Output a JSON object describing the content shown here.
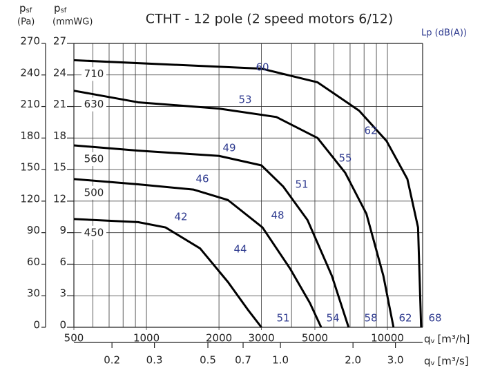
{
  "chart_data": {
    "type": "line",
    "title": "CTHT - 12 pole (2 speed motors 6/12)",
    "ylabel": {
      "symbol": "p",
      "sub": "sf",
      "unit": "(Pa)"
    },
    "y2label": {
      "symbol": "p",
      "sub": "sf",
      "unit": "(mmWG)"
    },
    "xlabel": {
      "symbol": "q",
      "sub": "v",
      "unit": "[m³/h]"
    },
    "x2label": {
      "symbol": "q",
      "sub": "v",
      "unit": "[m³/s]"
    },
    "lp_header": "Lp (dB(A))",
    "xscale": "log",
    "xlim": [
      500,
      14000
    ],
    "xticks": [
      500,
      1000,
      2000,
      3000,
      5000,
      10000
    ],
    "xminor_ticks": [
      600,
      700,
      800,
      900,
      4000,
      6000,
      7000,
      8000,
      9000
    ],
    "x2lim": [
      0.139,
      3.89
    ],
    "x2ticks": [
      0.2,
      0.3,
      0.5,
      0.7,
      {
        "value": 1,
        "label": "1.0"
      },
      {
        "value": 2,
        "label": "2.0"
      },
      {
        "value": 3,
        "label": "3.0"
      }
    ],
    "ylim": [
      0,
      270
    ],
    "yticks": [
      0,
      30,
      60,
      90,
      120,
      150,
      180,
      210,
      240,
      270
    ],
    "y2lim": [
      0,
      27
    ],
    "y2ticks": [
      0,
      3,
      6,
      9,
      12,
      15,
      18,
      21,
      24,
      27
    ],
    "grid": true,
    "series": [
      {
        "name": "710",
        "color": "#000000",
        "x": [
          500,
          3000,
          5130,
          7630,
          9930,
          12100,
          13400,
          13800
        ],
        "values": [
          254,
          246,
          233,
          206,
          177,
          141,
          95,
          0
        ],
        "lp": [
          60,
          62,
          68
        ]
      },
      {
        "name": "630",
        "color": "#000000",
        "x": [
          500,
          923,
          2000,
          3460,
          5130,
          6680,
          8180,
          9620,
          10600
        ],
        "values": [
          225,
          214,
          208,
          200,
          180,
          147,
          108,
          49,
          0
        ],
        "lp": [
          53,
          55,
          62
        ]
      },
      {
        "name": "560",
        "color": "#000000",
        "x": [
          500,
          923,
          2000,
          3000,
          3690,
          4660,
          5880,
          6900
        ],
        "values": [
          173,
          168,
          163,
          154,
          134,
          102,
          49,
          0
        ],
        "lp": [
          49,
          51,
          58
        ]
      },
      {
        "name": "500",
        "color": "#000000",
        "x": [
          500,
          923,
          1565,
          2180,
          3030,
          3940,
          4770,
          5310
        ],
        "values": [
          141,
          136,
          131,
          121,
          95,
          56,
          23,
          0
        ],
        "lp": [
          46,
          48,
          54
        ]
      },
      {
        "name": "450",
        "color": "#000000",
        "x": [
          500,
          923,
          1200,
          1670,
          2180,
          2650,
          3000
        ],
        "values": [
          103,
          100,
          95,
          75,
          43,
          16,
          0
        ],
        "lp": [
          42,
          44,
          51
        ]
      }
    ]
  }
}
